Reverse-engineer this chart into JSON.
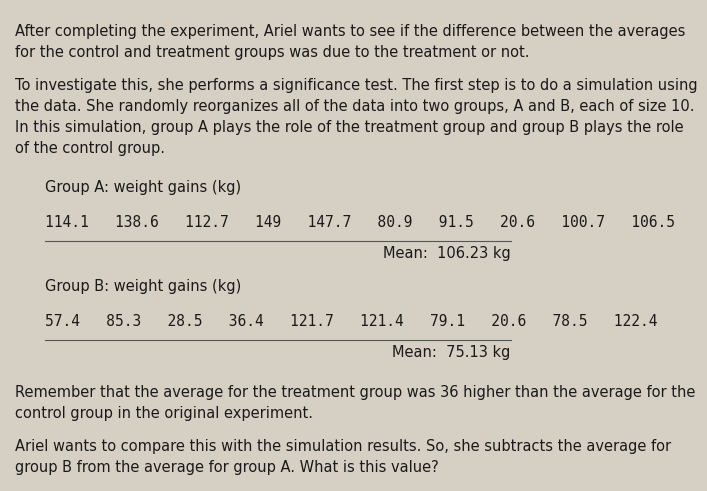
{
  "bg_color": "#d6d0c4",
  "text_color": "#1a1a1a",
  "para1": "After completing the experiment, Ariel wants to see if the difference between the averages\nfor the control and treatment groups was due to the treatment or not.",
  "para2": "To investigate this, she performs a significance test. The first step is to do a simulation using\nthe data. She randomly reorganizes all of the data into two groups, A and B, each of size 10.\nIn this simulation, group A plays the role of the treatment group and group B plays the role\nof the control group.",
  "group_a_label": "Group A: weight gains (kg)",
  "group_a_values": "114.1   138.6   112.7   149   147.7   80.9   91.5   20.6   100.7   106.5",
  "group_a_mean": "Mean:  106.23 kg",
  "group_b_label": "Group B: weight gains (kg)",
  "group_b_values": "57.4   85.3   28.5   36.4   121.7   121.4   79.1   20.6   78.5   122.4",
  "group_b_mean": "Mean:  75.13 kg",
  "para3": "Remember that the average for the treatment group was 36 higher than the average for the\ncontrol group in the original experiment.",
  "para4": "Ariel wants to compare this with the simulation results. So, she subtracts the average for\ngroup B from the average for group A. What is this value?",
  "font_size_body": 10.5,
  "font_size_data": 10.5,
  "font_size_mean": 10.5,
  "indent": 0.07
}
